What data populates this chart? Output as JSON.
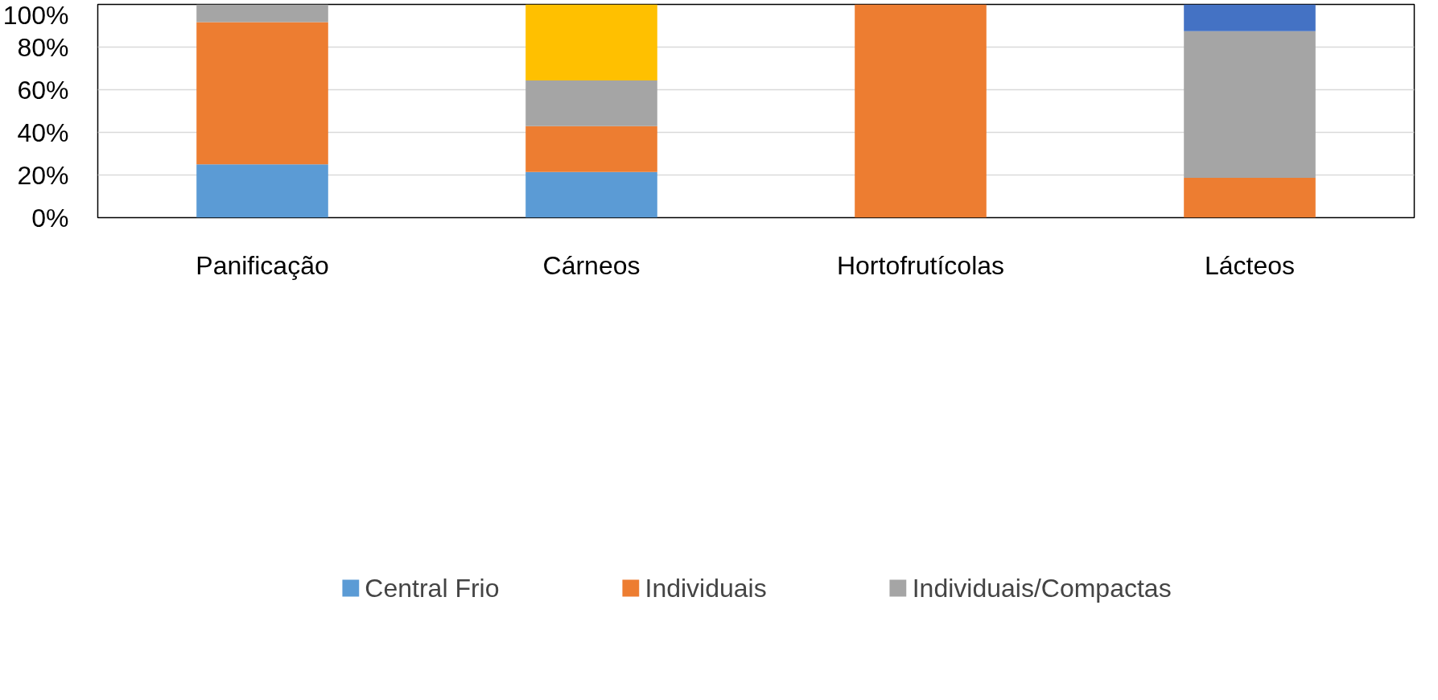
{
  "chart_data": {
    "type": "bar",
    "stacked": true,
    "categories": [
      "Panificação",
      "Cárneos",
      "Hortofrutícolas",
      "Lácteos"
    ],
    "series": [
      {
        "name": "Central Frio",
        "color": "#5b9bd5",
        "values": [
          25,
          21.4,
          null,
          null
        ]
      },
      {
        "name": "Individuais",
        "color": "#ed7d31",
        "values": [
          66.7,
          21.5,
          100,
          18.7
        ]
      },
      {
        "name": "Individuais/Compactas",
        "color": "#a5a5a5",
        "values": [
          8.3,
          21.4,
          null,
          68.8
        ]
      },
      {
        "color": "#ffc000",
        "values": [
          null,
          35.7,
          null,
          null
        ]
      },
      {
        "color": "#4472c4",
        "values": [
          null,
          null,
          null,
          12.5
        ]
      }
    ],
    "ylim": [
      0,
      100
    ],
    "yticks": [
      {
        "value": 0,
        "label": "0%"
      },
      {
        "value": 20,
        "label": "20%"
      },
      {
        "value": 40,
        "label": "40%"
      },
      {
        "value": 60,
        "label": "60%"
      },
      {
        "value": 80,
        "label": "80%"
      },
      {
        "value": 100,
        "label": "100%"
      }
    ],
    "grid": "y",
    "legend": "bottom"
  }
}
